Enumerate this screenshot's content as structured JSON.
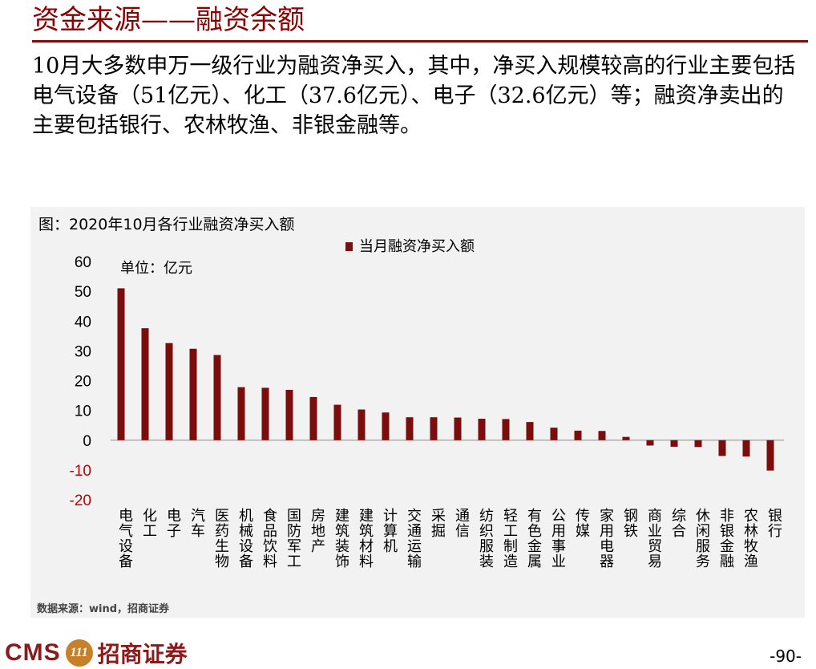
{
  "page": {
    "title": "资金来源——融资余额",
    "body_text": "10月大多数申万一级行业为融资净买入，其中，净买入规模较高的行业主要包括电气设备（51亿元）、化工（37.6亿元）、电子（32.6亿元）等；融资净卖出的主要包括银行、农林牧渔、非银金融等。",
    "figure_title": "图：2020年10月各行业融资净买入额",
    "source": "数据来源：wind，招商证券",
    "page_number": "-90-",
    "logo_latin": "CMS",
    "logo_badge": "111",
    "logo_chinese": "招商证券"
  },
  "colors": {
    "title": "#8b0000",
    "bar": "#7b0d0d",
    "negative_tick": "#c00000"
  },
  "chart_data": {
    "type": "bar",
    "unit_label": "单位：亿元",
    "legend": "当月融资净买入额",
    "ylim": [
      -20,
      60
    ],
    "yticks": [
      60,
      50,
      40,
      30,
      20,
      10,
      0,
      -10,
      -20
    ],
    "categories": [
      "电气设备",
      "化工",
      "电子",
      "汽车",
      "医药生物",
      "机械设备",
      "食品饮料",
      "国防军工",
      "房地产",
      "建筑装饰",
      "建筑材料",
      "计算机",
      "交通运输",
      "采掘",
      "通信",
      "纺织服装",
      "轻工制造",
      "有色金属",
      "公用事业",
      "传媒",
      "家用电器",
      "钢铁",
      "商业贸易",
      "综合",
      "休闲服务",
      "非银金融",
      "农林牧渔",
      "银行"
    ],
    "series": [
      {
        "name": "当月融资净买入额",
        "values": [
          51,
          37.6,
          32.6,
          30.7,
          28.6,
          17.8,
          17.6,
          16.9,
          14.5,
          11.9,
          10.3,
          9.3,
          7.7,
          7.7,
          7.6,
          7.2,
          7.1,
          6.1,
          4.2,
          3.2,
          3.1,
          1.1,
          -1.8,
          -2.2,
          -2.3,
          -5.3,
          -5.5,
          -10.2
        ]
      }
    ]
  }
}
